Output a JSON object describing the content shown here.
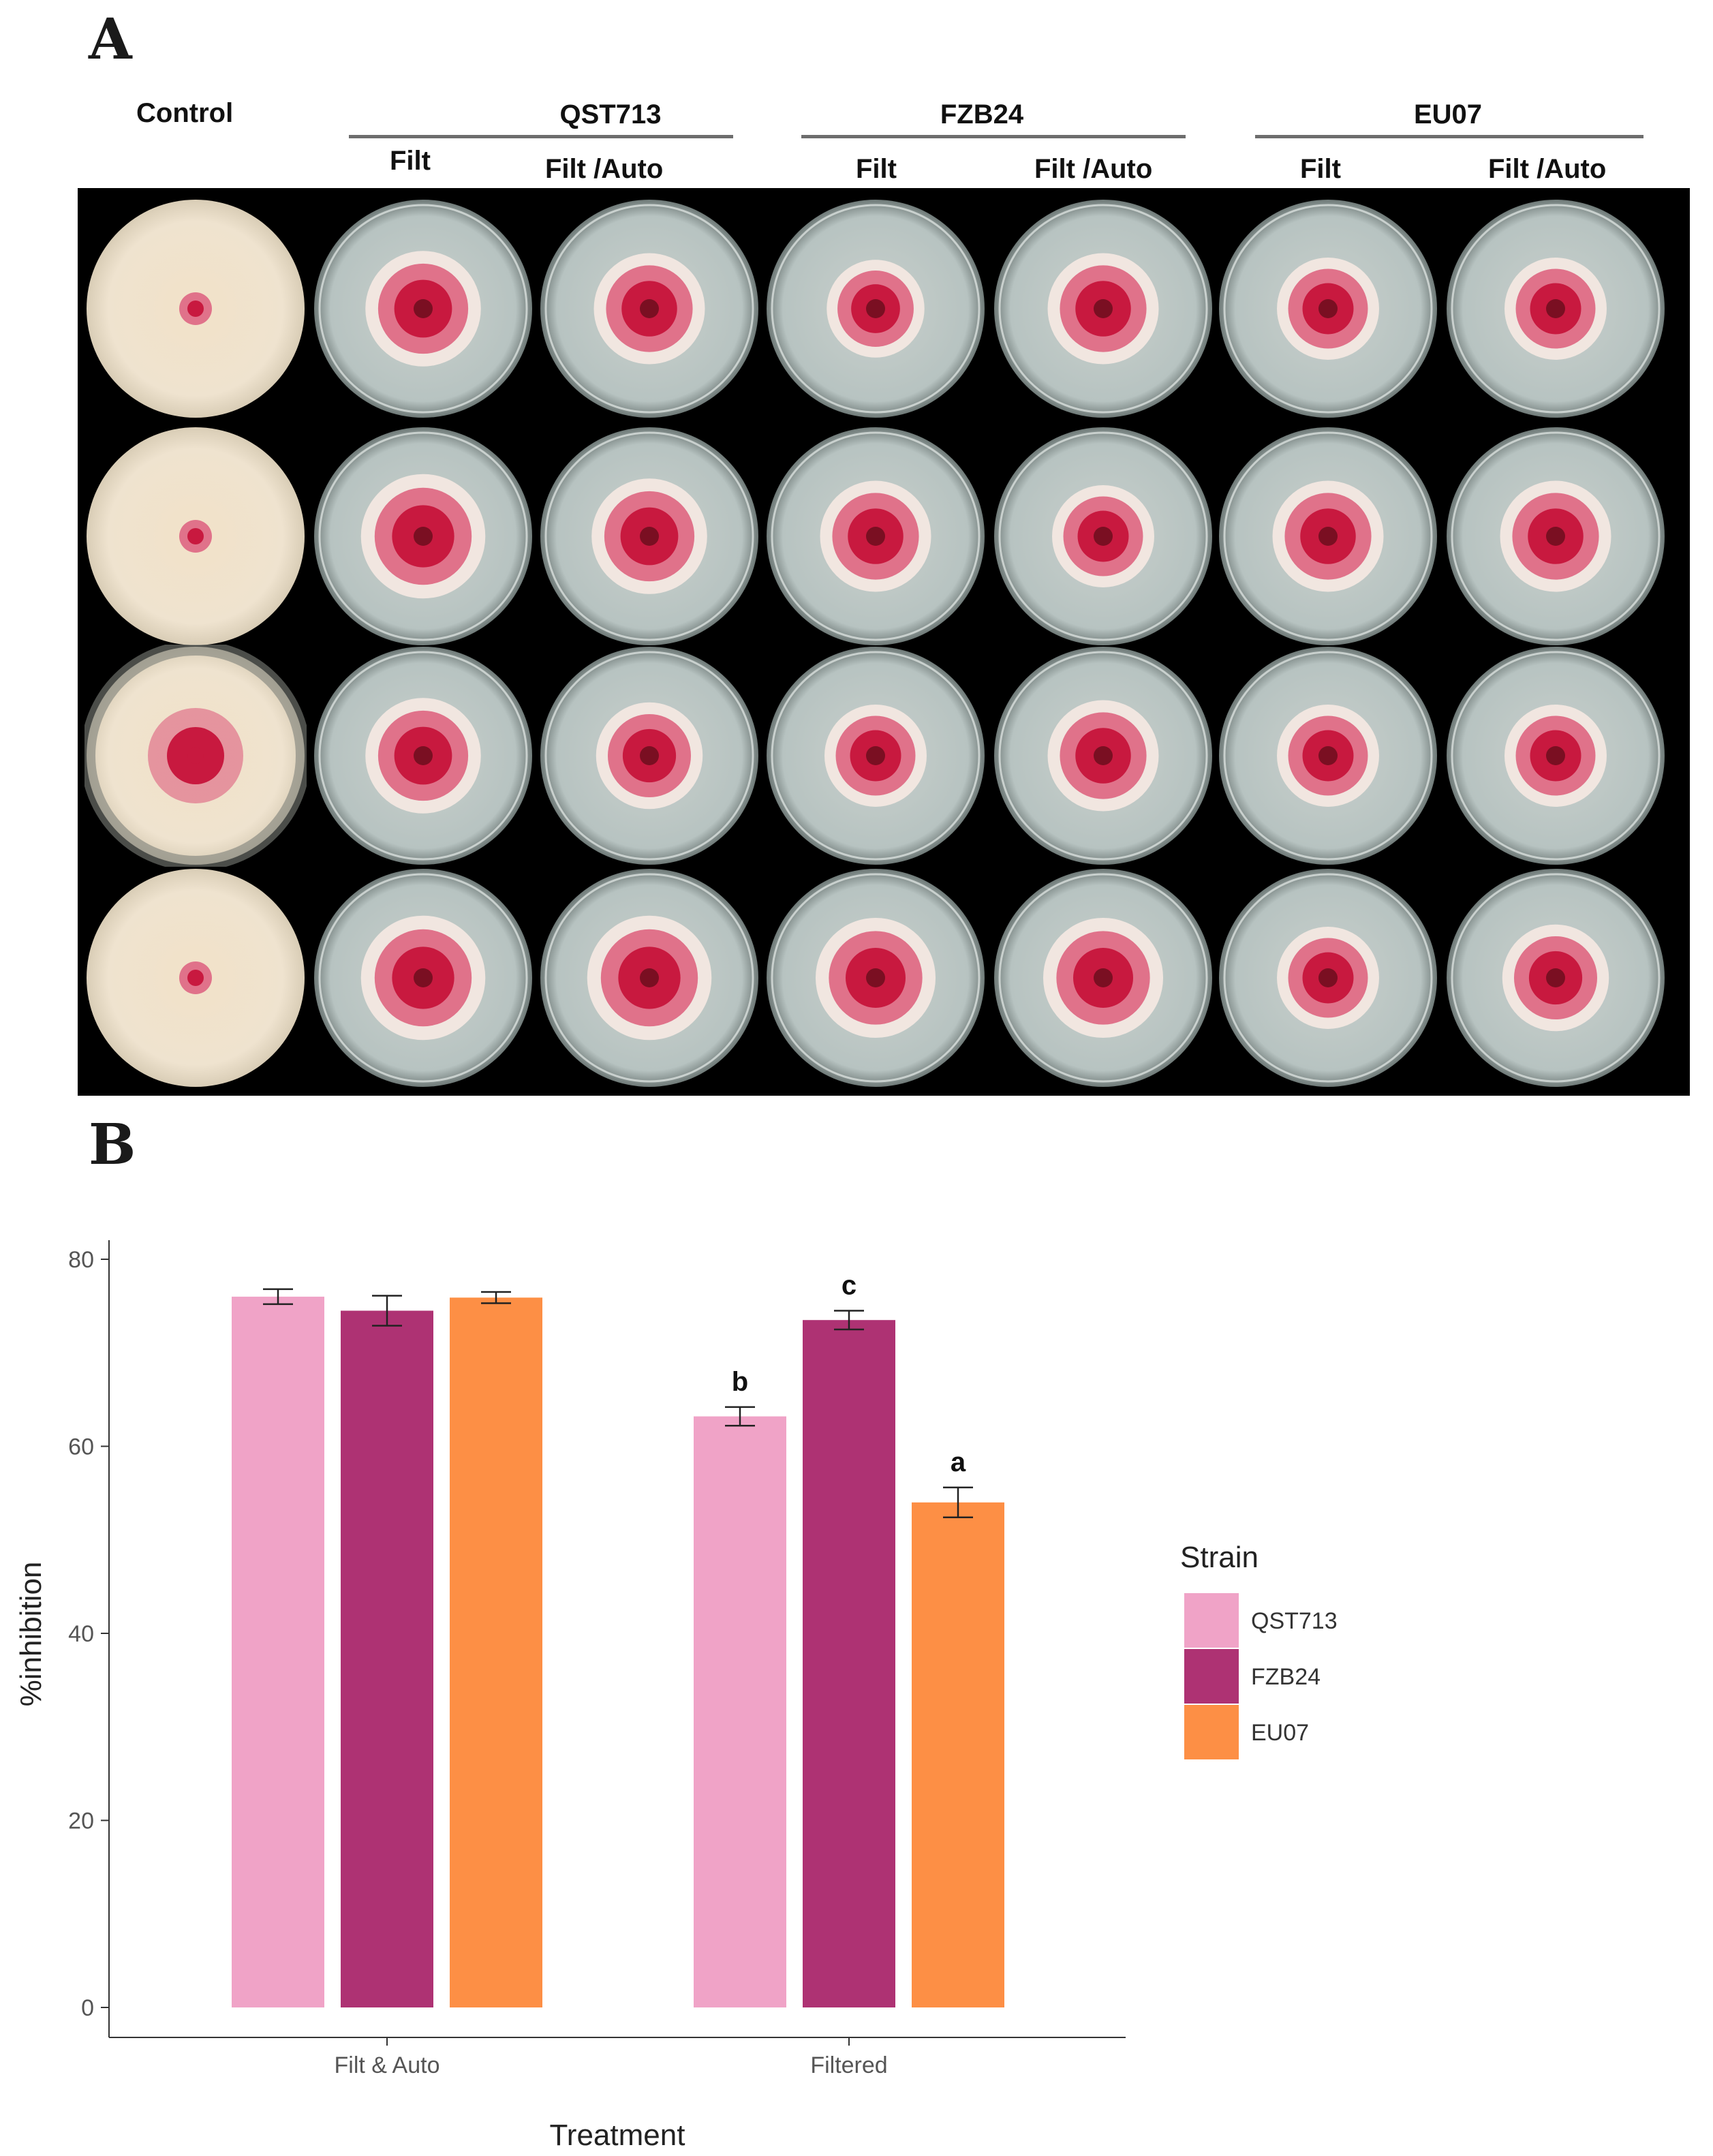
{
  "panel_a": {
    "label": "A",
    "control_label": "Control",
    "groups": [
      {
        "name": "QST713",
        "sub": [
          "Filt",
          "Filt /Auto"
        ]
      },
      {
        "name": "FZB24",
        "sub": [
          "Filt",
          "Filt /Auto"
        ]
      },
      {
        "name": "EU07",
        "sub": [
          "Filt",
          "Filt /Auto"
        ]
      }
    ],
    "plate_colors": {
      "background": "#000000",
      "control_mycelium": "#efe3cf",
      "agar": "#b7c3c1",
      "colony_pink": "#e0728a",
      "colony_red": "#c8193f",
      "colony_center": "#7a0f22"
    }
  },
  "panel_b": {
    "label": "B"
  },
  "chart_data": {
    "type": "bar",
    "xlabel": "Treatment",
    "ylabel": "%inhibition",
    "categories": [
      "Filt & Auto",
      "Filtered"
    ],
    "ylim": [
      0,
      82
    ],
    "yticks": [
      0,
      20,
      40,
      60,
      80
    ],
    "grid": false,
    "legend": {
      "title": "Strain",
      "position": "right"
    },
    "series": [
      {
        "name": "QST713",
        "color": "#f0a3c7",
        "values": [
          76.0,
          63.2
        ],
        "errors": [
          0.8,
          1.0
        ],
        "letters": [
          "",
          "b"
        ]
      },
      {
        "name": "FZB24",
        "color": "#ae3273",
        "values": [
          74.5,
          73.5
        ],
        "errors": [
          1.6,
          1.0
        ],
        "letters": [
          "",
          "c"
        ]
      },
      {
        "name": "EU07",
        "color": "#fd8f45",
        "values": [
          75.9,
          54.0
        ],
        "errors": [
          0.6,
          1.6
        ],
        "letters": [
          "",
          "a"
        ]
      }
    ]
  }
}
